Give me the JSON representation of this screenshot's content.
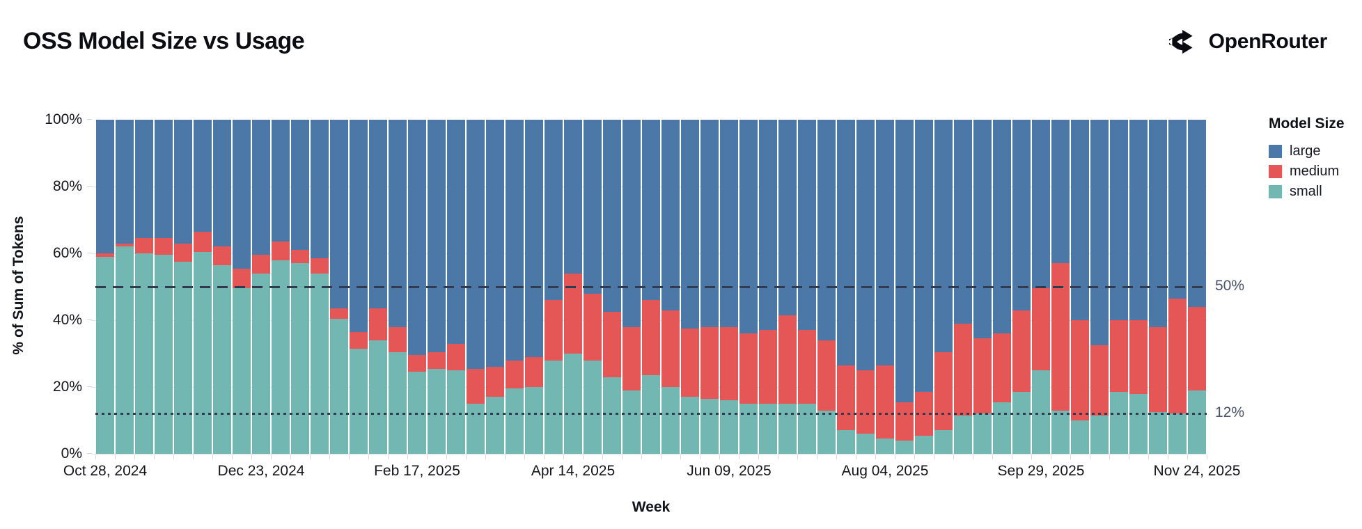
{
  "page": {
    "title": "OSS Model Size vs Usage",
    "brand": {
      "name": "OpenRouter",
      "icon": "openrouter-fork-icon"
    }
  },
  "chart_data": {
    "type": "bar",
    "variant": "stacked-normalized-weekly",
    "title": "OSS Model Size vs Usage",
    "xlabel": "Week",
    "ylabel": "% of Sum of Tokens",
    "ylim": [
      0,
      100
    ],
    "grid": true,
    "legend": {
      "title": "Model Size",
      "position": "right"
    },
    "y_ticks": [
      "100%",
      "80%",
      "60%",
      "40%",
      "20%",
      "0%"
    ],
    "x_ticks": [
      "Oct 28, 2024",
      "Dec 23, 2024",
      "Feb 17, 2025",
      "Apr 14, 2025",
      "Jun 09, 2025",
      "Aug 04, 2025",
      "Sep 29, 2025",
      "Nov 24, 2025"
    ],
    "reference_lines": [
      {
        "y": 50,
        "label": "50%",
        "style": "dashed"
      },
      {
        "y": 12,
        "label": "12%",
        "style": "dotted"
      }
    ],
    "colors": {
      "large": "#4c78a8",
      "medium": "#e45756",
      "small": "#72b7b2"
    },
    "stack_order_bottom_to_top": [
      "small",
      "medium",
      "large"
    ],
    "categories": [
      "Oct 28, 2024",
      "Nov 04, 2024",
      "Nov 11, 2024",
      "Nov 18, 2024",
      "Nov 25, 2024",
      "Dec 02, 2024",
      "Dec 09, 2024",
      "Dec 16, 2024",
      "Dec 23, 2024",
      "Dec 30, 2024",
      "Jan 06, 2025",
      "Jan 13, 2025",
      "Jan 20, 2025",
      "Jan 27, 2025",
      "Feb 03, 2025",
      "Feb 10, 2025",
      "Feb 17, 2025",
      "Feb 24, 2025",
      "Mar 03, 2025",
      "Mar 10, 2025",
      "Mar 17, 2025",
      "Mar 24, 2025",
      "Mar 31, 2025",
      "Apr 07, 2025",
      "Apr 14, 2025",
      "Apr 21, 2025",
      "Apr 28, 2025",
      "May 05, 2025",
      "May 12, 2025",
      "May 19, 2025",
      "May 26, 2025",
      "Jun 02, 2025",
      "Jun 09, 2025",
      "Jun 16, 2025",
      "Jun 23, 2025",
      "Jun 30, 2025",
      "Jul 07, 2025",
      "Jul 14, 2025",
      "Jul 21, 2025",
      "Jul 28, 2025",
      "Aug 04, 2025",
      "Aug 11, 2025",
      "Aug 18, 2025",
      "Aug 25, 2025",
      "Sep 01, 2025",
      "Sep 08, 2025",
      "Sep 15, 2025",
      "Sep 22, 2025",
      "Sep 29, 2025",
      "Oct 06, 2025",
      "Oct 13, 2025",
      "Oct 20, 2025",
      "Oct 27, 2025",
      "Nov 03, 2025",
      "Nov 10, 2025",
      "Nov 17, 2025",
      "Nov 24, 2025"
    ],
    "series": [
      {
        "name": "large",
        "color": "#4c78a8",
        "values": [
          40,
          37,
          35.5,
          35.5,
          37,
          33.5,
          38,
          44.5,
          40.5,
          36.5,
          39,
          41.5,
          56.5,
          63.5,
          56.5,
          62,
          70.5,
          69.5,
          67,
          74.5,
          74,
          72,
          71,
          54,
          46,
          52,
          57.5,
          62,
          54,
          57,
          62.5,
          62,
          62,
          64,
          63,
          58.5,
          63,
          66,
          73.5,
          75,
          73.5,
          84.5,
          81.5,
          69.5,
          61,
          65.5,
          64,
          57,
          50.5,
          43,
          60,
          67.5,
          60,
          60,
          62,
          53.5,
          56
        ]
      },
      {
        "name": "medium",
        "color": "#e45756",
        "values": [
          1,
          1,
          4.5,
          5,
          5.5,
          6,
          5.5,
          6,
          5.5,
          5.5,
          4,
          4.5,
          3,
          5,
          9.5,
          7.5,
          5,
          5,
          8,
          10.5,
          9,
          8.5,
          9,
          18,
          24,
          20,
          19.5,
          19,
          22.5,
          23,
          20.5,
          21.5,
          22,
          21,
          22,
          26.5,
          22,
          21,
          19.5,
          19,
          22,
          11.5,
          13,
          23.5,
          27.5,
          22.5,
          20.5,
          24.5,
          24.5,
          44,
          30,
          21,
          21.5,
          22,
          25.5,
          34.5,
          25
        ]
      },
      {
        "name": "small",
        "color": "#72b7b2",
        "values": [
          59,
          62,
          60,
          59.5,
          57.5,
          60.5,
          56.5,
          49.5,
          54,
          58,
          57,
          54,
          40.5,
          31.5,
          34,
          30.5,
          24.5,
          25.5,
          25,
          15,
          17,
          19.5,
          20,
          28,
          30,
          28,
          23,
          19,
          23.5,
          20,
          17,
          16.5,
          16,
          15,
          15,
          15,
          15,
          13,
          7,
          6,
          4.5,
          4,
          5.5,
          7,
          11.5,
          12,
          15.5,
          18.5,
          25,
          13,
          10,
          11.5,
          18.5,
          18,
          12.5,
          12,
          19
        ]
      }
    ]
  }
}
